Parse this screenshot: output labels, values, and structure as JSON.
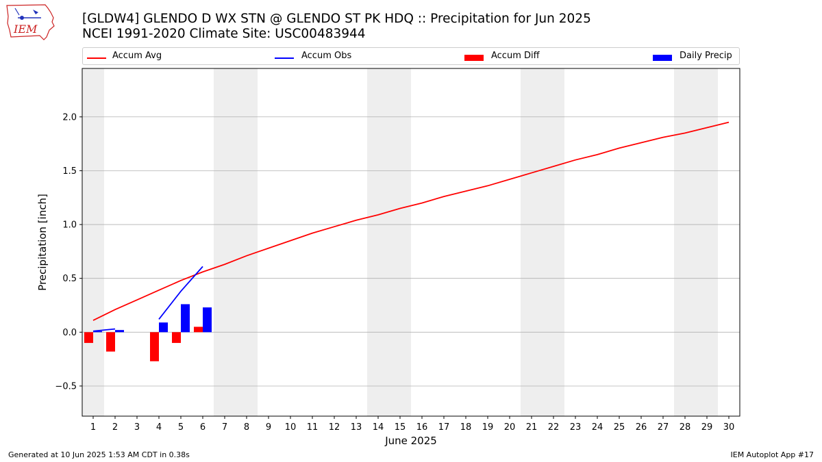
{
  "header": {
    "title_line1": "[GLDW4] GLENDO D WX STN @ GLENDO ST PK HDQ :: Precipitation for Jun 2025",
    "title_line2": "NCEI 1991-2020 Climate Site: USC00483944"
  },
  "logo": {
    "text": "IEM",
    "icon": "iowa-state-outline-logo",
    "color": "#cc2222"
  },
  "legend": {
    "items": [
      {
        "label": "Accum Avg",
        "kind": "line",
        "color": "#ff0000"
      },
      {
        "label": "Accum Obs",
        "kind": "line",
        "color": "#0000ff"
      },
      {
        "label": "Accum Diff",
        "kind": "bar",
        "color": "#ff0000"
      },
      {
        "label": "Daily Precip",
        "kind": "bar",
        "color": "#0000ff"
      }
    ]
  },
  "chart_data": {
    "type": "bar",
    "xlabel": "June 2025",
    "ylabel": "Precipitation [inch]",
    "x": [
      1,
      2,
      3,
      4,
      5,
      6,
      7,
      8,
      9,
      10,
      11,
      12,
      13,
      14,
      15,
      16,
      17,
      18,
      19,
      20,
      21,
      22,
      23,
      24,
      25,
      26,
      27,
      28,
      29,
      30
    ],
    "xlim": [
      0.5,
      30.5
    ],
    "ylim": [
      -0.78,
      2.45
    ],
    "yticks": [
      -0.5,
      0.0,
      0.5,
      1.0,
      1.5,
      2.0
    ],
    "ytick_labels": [
      "−0.5",
      "0.0",
      "0.5",
      "1.0",
      "1.5",
      "2.0"
    ],
    "grid": "horizontal",
    "weekend_shading": [
      [
        0.5,
        1.5
      ],
      [
        6.5,
        8.5
      ],
      [
        13.5,
        15.5
      ],
      [
        20.5,
        22.5
      ],
      [
        27.5,
        29.5
      ]
    ],
    "colors": {
      "avg": "#ff0000",
      "obs": "#0000ff",
      "diff": "#ff0000",
      "daily": "#0000ff",
      "weekend": "#eeeeee",
      "grid": "#b0b0b0"
    },
    "series": [
      {
        "name": "Accum Avg",
        "kind": "line",
        "values": [
          0.11,
          0.21,
          0.3,
          0.39,
          0.48,
          0.56,
          0.63,
          0.71,
          0.78,
          0.85,
          0.92,
          0.98,
          1.04,
          1.09,
          1.15,
          1.2,
          1.26,
          1.31,
          1.36,
          1.42,
          1.48,
          1.54,
          1.6,
          1.65,
          1.71,
          1.76,
          1.81,
          1.85,
          1.9,
          1.95
        ]
      },
      {
        "name": "Accum Obs",
        "kind": "line",
        "segments": [
          {
            "x": [
              1,
              2
            ],
            "values": [
              0.01,
              0.03
            ]
          },
          {
            "x": [
              4,
              5,
              6
            ],
            "values": [
              0.12,
              0.38,
              0.61
            ]
          }
        ]
      },
      {
        "name": "Accum Diff",
        "kind": "bar",
        "x": [
          1,
          2,
          4,
          5,
          6
        ],
        "values": [
          -0.1,
          -0.18,
          -0.27,
          -0.1,
          0.05
        ]
      },
      {
        "name": "Daily Precip",
        "kind": "bar",
        "x": [
          1,
          2,
          4,
          5,
          6
        ],
        "values": [
          0.01,
          0.02,
          0.09,
          0.26,
          0.23
        ]
      }
    ]
  },
  "footer": {
    "left": "Generated at 10 Jun 2025 1:53 AM CDT in 0.38s",
    "right": "IEM Autoplot App #17"
  }
}
